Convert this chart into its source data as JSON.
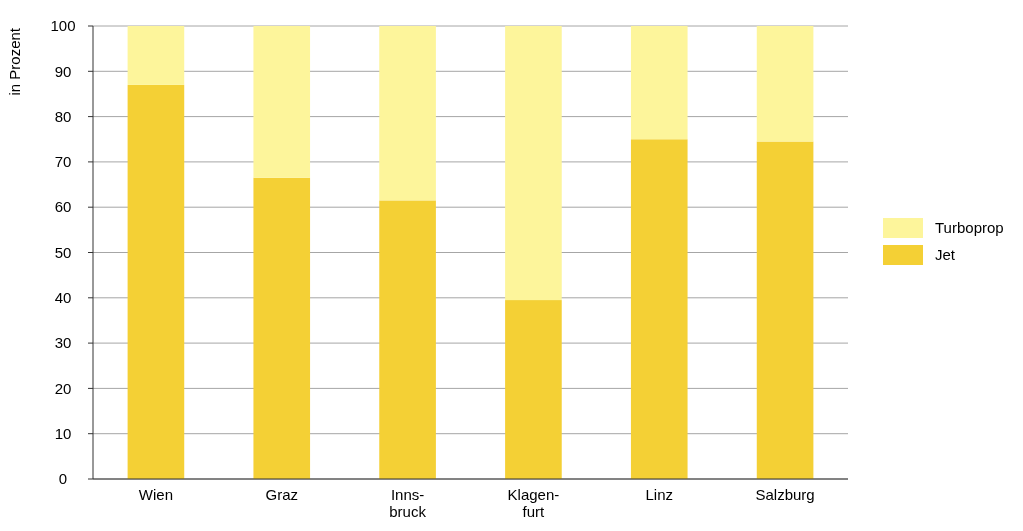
{
  "chart_data": {
    "type": "bar",
    "stacked": true,
    "ylabel": "in Prozent",
    "categories": [
      "Wien",
      "Graz",
      "Inns-\nbruck",
      "Klagen-\nfurt",
      "Linz",
      "Salzburg"
    ],
    "series": [
      {
        "name": "Jet",
        "color": "#f4d035",
        "values": [
          87,
          66.5,
          61.5,
          39.5,
          75,
          74.5
        ]
      },
      {
        "name": "Turboprop",
        "color": "#fdf59b",
        "values": [
          13,
          33.5,
          38.5,
          60.5,
          25,
          25.5
        ]
      }
    ],
    "ylim": [
      0,
      100
    ],
    "yticks": [
      0,
      10,
      20,
      30,
      40,
      50,
      60,
      70,
      80,
      90,
      100
    ],
    "grid": "y",
    "legend": "right"
  }
}
